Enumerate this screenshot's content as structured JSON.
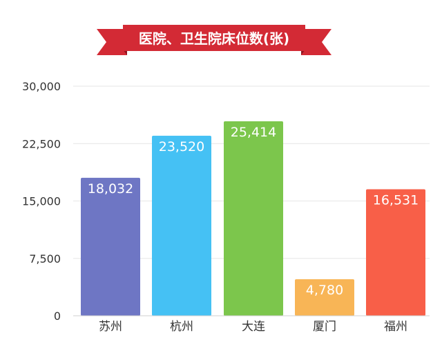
{
  "colors": {
    "banner": "#d32a35",
    "banner_dark": "#8e1420",
    "title_text": "#ffffff"
  },
  "chart_data": {
    "type": "bar",
    "title": "医院、卫生院床位数(张)",
    "categories": [
      "苏州",
      "杭州",
      "大连",
      "厦门",
      "福州"
    ],
    "values": [
      18032,
      23520,
      25414,
      4780,
      16531
    ],
    "value_labels": [
      "18,032",
      "23,520",
      "25,414",
      "4,780",
      "16,531"
    ],
    "bar_colors": [
      "#6e76c4",
      "#45c1f4",
      "#7cc64c",
      "#f8b556",
      "#f85f48"
    ],
    "ylim": [
      0,
      30000
    ],
    "yticks": [
      0,
      7500,
      15000,
      22500,
      30000
    ],
    "ytick_labels": [
      "0",
      "7,500",
      "15,000",
      "22,500",
      "30,000"
    ],
    "grid": true,
    "xlabel": "",
    "ylabel": ""
  }
}
